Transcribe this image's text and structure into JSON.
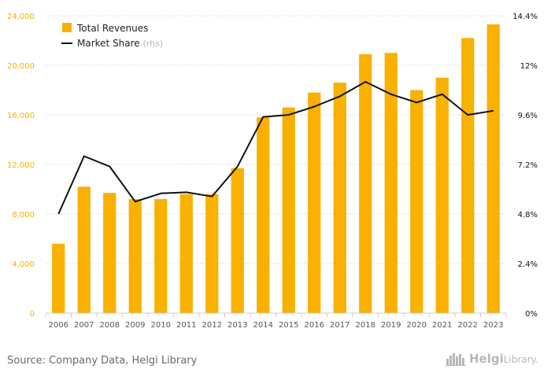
{
  "chart_data": {
    "type": "bar",
    "categories": [
      "2006",
      "2007",
      "2008",
      "2009",
      "2010",
      "2011",
      "2012",
      "2013",
      "2014",
      "2015",
      "2016",
      "2017",
      "2018",
      "2019",
      "2020",
      "2021",
      "2022",
      "2023"
    ],
    "series": [
      {
        "name": "Total Revenues",
        "type": "bar",
        "axis": "left",
        "color": "#f8b100",
        "values": [
          5600,
          10200,
          9700,
          9200,
          9200,
          9600,
          9600,
          11700,
          15800,
          16600,
          17800,
          18600,
          20900,
          21000,
          18000,
          19000,
          22200,
          23300
        ]
      },
      {
        "name": "Market Share",
        "name_suffix": "(rhs)",
        "type": "line",
        "axis": "right",
        "color": "#111111",
        "values": [
          4.8,
          7.6,
          7.1,
          5.4,
          5.8,
          5.85,
          5.65,
          7.1,
          9.5,
          9.6,
          10.0,
          10.5,
          11.2,
          10.6,
          10.2,
          10.6,
          9.6,
          9.8
        ]
      }
    ],
    "yaxis_left": {
      "ylim": [
        0,
        24000
      ],
      "ticks": [
        "0",
        "4,000",
        "8,000",
        "12,000",
        "16,000",
        "20,000",
        "24,000"
      ],
      "tick_values": [
        0,
        4000,
        8000,
        12000,
        16000,
        20000,
        24000
      ],
      "label_color": "#f8b100"
    },
    "yaxis_right": {
      "ylim": [
        0,
        14.4
      ],
      "ticks": [
        "0%",
        "2.4%",
        "4.8%",
        "7.2%",
        "9.6%",
        "12%",
        "14.4%"
      ],
      "tick_values": [
        0,
        2.4,
        4.8,
        7.2,
        9.6,
        12,
        14.4
      ],
      "label_color": "#111111"
    },
    "grid": "horizontal",
    "legend": "top-left",
    "colors": {
      "grid": "#dcdcdc",
      "tick_text": "#555555",
      "frame": "#cccccc"
    }
  },
  "footer": {
    "source": "Source: Company Data, Helgi Library",
    "logo_first": "Helgi",
    "logo_second": "Library",
    "logo_period": "."
  }
}
